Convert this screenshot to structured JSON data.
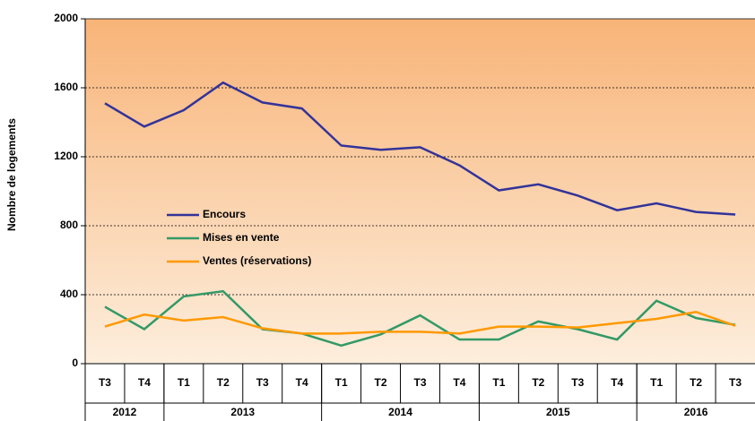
{
  "chart_data": {
    "type": "line",
    "y_label": "Nombre de logements",
    "categories": [
      "T3",
      "T4",
      "T1",
      "T2",
      "T3",
      "T4",
      "T1",
      "T2",
      "T3",
      "T4",
      "T1",
      "T2",
      "T3",
      "T4",
      "T1",
      "T2",
      "T3"
    ],
    "groups": [
      {
        "label": "2012",
        "span": 2
      },
      {
        "label": "2013",
        "span": 4
      },
      {
        "label": "2014",
        "span": 4
      },
      {
        "label": "2015",
        "span": 4
      },
      {
        "label": "2016",
        "span": 3
      }
    ],
    "series": [
      {
        "name": "Encours",
        "color": "#333399",
        "values": [
          1510,
          1375,
          1470,
          1630,
          1515,
          1480,
          1265,
          1240,
          1255,
          1150,
          1005,
          1040,
          975,
          890,
          930,
          880,
          865
        ]
      },
      {
        "name": "Mises en vente",
        "color": "#339966",
        "values": [
          330,
          200,
          390,
          420,
          200,
          175,
          105,
          170,
          280,
          140,
          140,
          245,
          200,
          140,
          365,
          265,
          225
        ]
      },
      {
        "name": "Ventes (réservations)",
        "color": "#ff9900",
        "values": [
          215,
          285,
          250,
          270,
          205,
          175,
          175,
          185,
          185,
          175,
          215,
          215,
          210,
          235,
          260,
          300,
          220
        ]
      }
    ],
    "ylim": [
      0,
      2000
    ],
    "yticks": [
      0,
      400,
      800,
      1200,
      1600,
      2000
    ],
    "grid": true
  }
}
